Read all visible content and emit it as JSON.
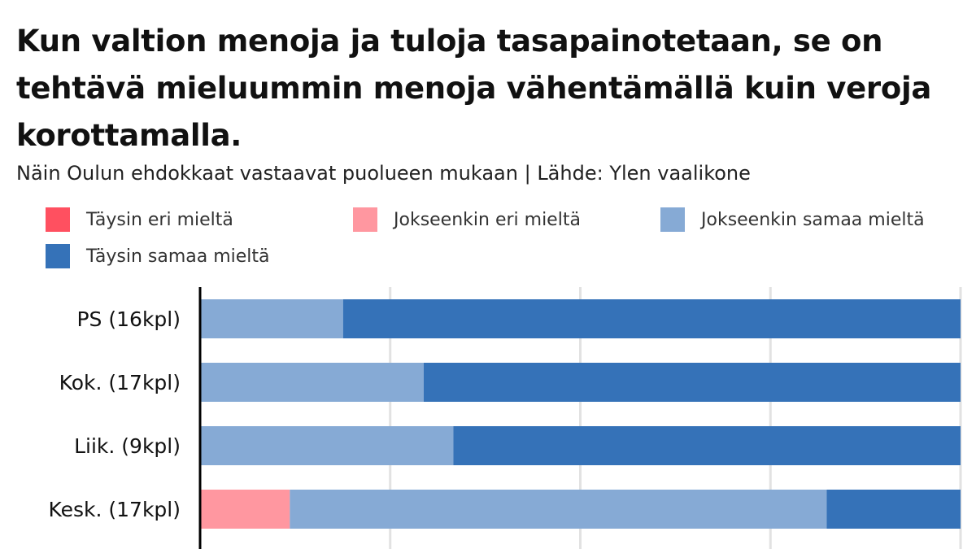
{
  "header": {
    "title": "Kun valtion menoja ja tuloja tasapainotetaan, se on tehtävä mieluummin menoja vähentämällä kuin veroja korottamalla.",
    "subtitle": "Näin Oulun ehdokkaat vastaavat puolueen mukaan | Lähde: Ylen vaalikone"
  },
  "chart_data": {
    "type": "bar",
    "orientation": "horizontal",
    "stacked": true,
    "normalized_percent": true,
    "title": "Kun valtion menoja ja tuloja tasapainotetaan, se on tehtävä mieluummin menoja vähentämällä kuin veroja korottamalla.",
    "subtitle": "Näin Oulun ehdokkaat vastaavat puolueen mukaan | Lähde: Ylen vaalikone",
    "categories": [
      "PS (16kpl)",
      "Kok. (17kpl)",
      "Liik. (9kpl)",
      "Kesk. (17kpl)"
    ],
    "xlim": [
      0,
      100
    ],
    "grid": true,
    "legend_position": "top",
    "series": [
      {
        "name": "Täysin eri mieltä",
        "color": "#ff5060",
        "values": [
          0,
          0,
          0,
          0
        ]
      },
      {
        "name": "Jokseenkin eri mieltä",
        "color": "#ff97a0",
        "values": [
          0,
          0,
          0,
          11.8
        ]
      },
      {
        "name": "Jokseenkin samaa mieltä",
        "color": "#86aad5",
        "values": [
          18.8,
          29.4,
          33.3,
          70.6
        ]
      },
      {
        "name": "Täysin samaa mieltä",
        "color": "#3572b8",
        "values": [
          81.2,
          70.6,
          66.7,
          17.6
        ]
      }
    ]
  }
}
